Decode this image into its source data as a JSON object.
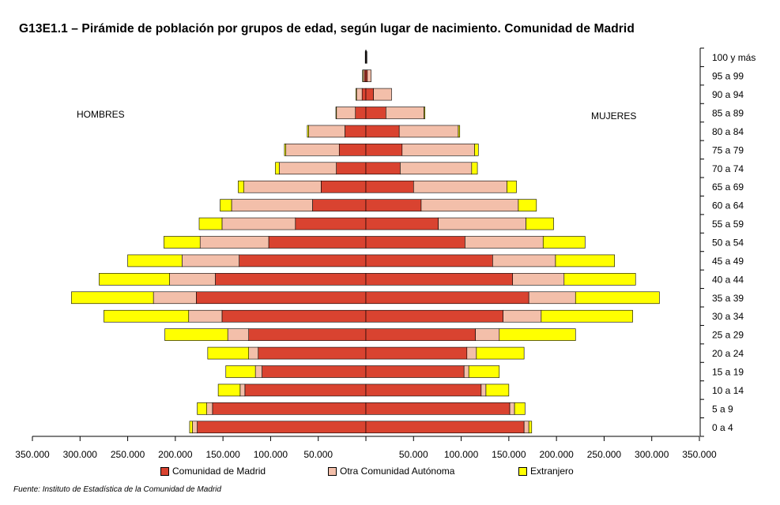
{
  "title": "G13E1.1 – Pirámide de población por grupos de edad, según lugar de nacimiento. Comunidad de Madrid",
  "source": "Fuente: Instituto de Estadística de la Comunidad de Madrid",
  "labels": {
    "men": "HOMBRES",
    "women": "MUJERES"
  },
  "legend": [
    {
      "name": "Comunidad de Madrid",
      "color": "#d94330"
    },
    {
      "name": "Otra Comunidad Autónoma",
      "color": "#f3bfaa"
    },
    {
      "name": "Extranjero",
      "color": "#ffff00"
    }
  ],
  "chart_data": {
    "type": "bar",
    "orientation": "horizontal-pyramid",
    "title": "G13E1.1 – Pirámide de población por grupos de edad, según lugar de nacimiento. Comunidad de Madrid",
    "xlim": [
      -350000,
      350000
    ],
    "x_ticks": [
      {
        "value": -350000,
        "label": "350.000"
      },
      {
        "value": -300000,
        "label": "300.000"
      },
      {
        "value": -250000,
        "label": "250.000"
      },
      {
        "value": -200000,
        "label": "200.000"
      },
      {
        "value": -150000,
        "label": "150.000"
      },
      {
        "value": -100000,
        "label": "100.000"
      },
      {
        "value": -50000,
        "label": "50.000"
      },
      {
        "value": 50000,
        "label": "50.000"
      },
      {
        "value": 100000,
        "label": "100.000"
      },
      {
        "value": 150000,
        "label": "150.000"
      },
      {
        "value": 200000,
        "label": "200.000"
      },
      {
        "value": 250000,
        "label": "250.000"
      },
      {
        "value": 300000,
        "label": "300.000"
      },
      {
        "value": 350000,
        "label": "350.000"
      }
    ],
    "categories": [
      "100 y más",
      "95 a 99",
      "90 a 94",
      "85 a 89",
      "80 a 84",
      "75 a 79",
      "70 a 74",
      "65 a 69",
      "60 a 64",
      "55 a 59",
      "50 a 54",
      "45 a 49",
      "40 a 44",
      "35 a 39",
      "30 a 34",
      "25 a 29",
      "20 a 24",
      "15 a 19",
      "10 a 14",
      "5 a 9",
      "0 a 4"
    ],
    "series_order": [
      "Comunidad de Madrid",
      "Otra Comunidad Autónoma",
      "Extranjero"
    ],
    "men": {
      "Comunidad de Madrid": [
        400,
        1500,
        4000,
        11000,
        22000,
        28000,
        31000,
        47000,
        56000,
        74000,
        102000,
        133000,
        158000,
        178000,
        151000,
        123000,
        113000,
        109000,
        127000,
        161000,
        177000
      ],
      "Otra Comunidad Autónoma": [
        300,
        1500,
        6000,
        20000,
        38000,
        56000,
        60000,
        81000,
        85000,
        77000,
        72000,
        60000,
        48000,
        45000,
        35000,
        22000,
        10000,
        7000,
        5000,
        6000,
        5000
      ],
      "Extranjero": [
        0,
        500,
        500,
        500,
        1500,
        1500,
        4000,
        6000,
        12000,
        24000,
        38000,
        57000,
        74000,
        86000,
        89000,
        66000,
        43000,
        31000,
        23000,
        10000,
        3000
      ]
    },
    "women": {
      "Comunidad de Madrid": [
        400,
        1500,
        8000,
        21000,
        35000,
        38000,
        36000,
        50000,
        58000,
        76000,
        104000,
        133000,
        154000,
        171000,
        144000,
        115000,
        106000,
        103000,
        121000,
        151000,
        166000
      ],
      "Otra Comunidad Autónoma": [
        300,
        4000,
        19000,
        40000,
        62000,
        76000,
        75000,
        98000,
        102000,
        92000,
        82000,
        66000,
        54000,
        49000,
        40000,
        25000,
        10000,
        5000,
        5000,
        5000,
        5000
      ],
      "Extranjero": [
        0,
        0,
        0,
        1000,
        1500,
        4000,
        6000,
        10000,
        19000,
        29000,
        44000,
        62000,
        75000,
        88000,
        96000,
        80000,
        50000,
        32000,
        24000,
        11000,
        3000
      ]
    }
  }
}
